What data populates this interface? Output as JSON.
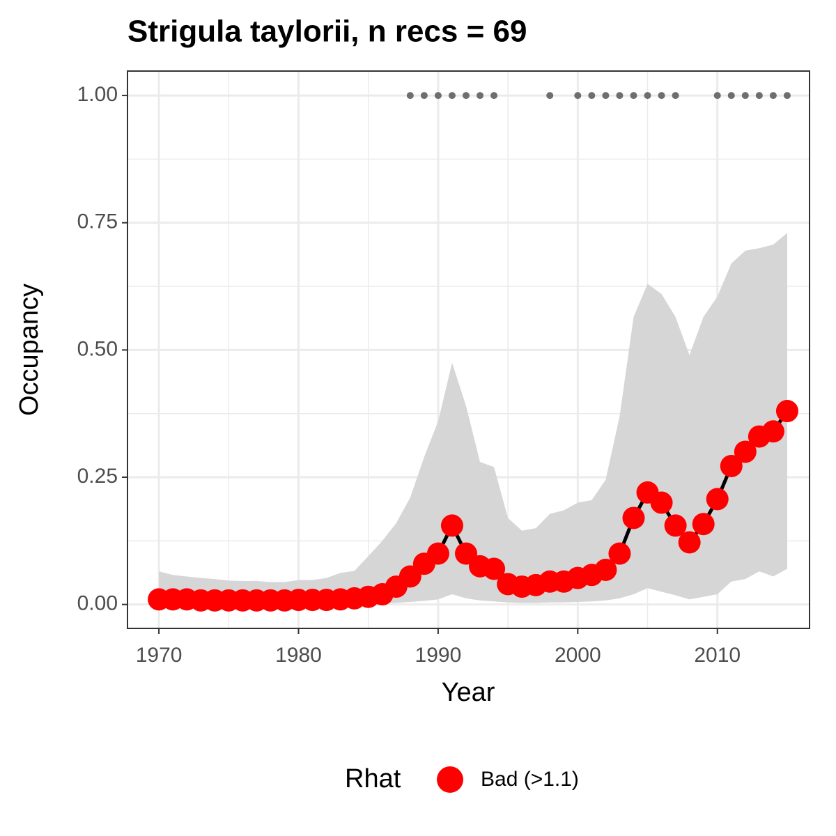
{
  "chart_data": {
    "type": "line",
    "title": "Strigula taylorii, n recs = 69",
    "x_label": "Year",
    "y_label": "Occupancy",
    "xlim": [
      1967.75,
      2016.6
    ],
    "ylim": [
      -0.047,
      1.048
    ],
    "xticks": [
      1970,
      1980,
      1990,
      2000,
      2010
    ],
    "yticks": [
      {
        "value": 0,
        "label": "0.00"
      },
      {
        "value": 0.25,
        "label": "0.25"
      },
      {
        "value": 0.5,
        "label": "0.50"
      },
      {
        "value": 0.75,
        "label": "0.75"
      },
      {
        "value": 1,
        "label": "1.00"
      }
    ],
    "grid": true,
    "x": [
      1970,
      1971,
      1972,
      1973,
      1974,
      1975,
      1976,
      1977,
      1978,
      1979,
      1980,
      1981,
      1982,
      1983,
      1984,
      1985,
      1986,
      1987,
      1988,
      1989,
      1990,
      1991,
      1992,
      1993,
      1994,
      1995,
      1996,
      1997,
      1998,
      1999,
      2000,
      2001,
      2002,
      2003,
      2004,
      2005,
      2006,
      2007,
      2008,
      2009,
      2010,
      2011,
      2012,
      2013,
      2014,
      2015
    ],
    "band": {
      "color": "#d6d6d6",
      "lower": [
        0,
        0,
        0,
        0,
        0,
        0,
        0,
        0,
        0,
        0,
        0,
        0,
        0,
        0,
        0,
        0.001,
        0.002,
        0.003,
        0.005,
        0.007,
        0.01,
        0.02,
        0.012,
        0.008,
        0.006,
        0.004,
        0.003,
        0.003,
        0.004,
        0.004,
        0.005,
        0.006,
        0.008,
        0.012,
        0.02,
        0.032,
        0.025,
        0.018,
        0.01,
        0.015,
        0.02,
        0.045,
        0.05,
        0.065,
        0.055,
        0.07
      ],
      "upper": [
        0.065,
        0.058,
        0.055,
        0.052,
        0.05,
        0.047,
        0.046,
        0.046,
        0.044,
        0.044,
        0.048,
        0.048,
        0.052,
        0.062,
        0.066,
        0.095,
        0.125,
        0.16,
        0.21,
        0.29,
        0.36,
        0.475,
        0.39,
        0.28,
        0.27,
        0.17,
        0.145,
        0.15,
        0.178,
        0.185,
        0.2,
        0.205,
        0.245,
        0.37,
        0.565,
        0.63,
        0.61,
        0.565,
        0.49,
        0.565,
        0.605,
        0.67,
        0.695,
        0.7,
        0.707,
        0.73
      ]
    },
    "series": [
      {
        "name": "Bad (>1.1)",
        "color": "#ff0000",
        "line_color": "#000000",
        "values": [
          0.01,
          0.01,
          0.01,
          0.008,
          0.008,
          0.008,
          0.008,
          0.008,
          0.008,
          0.008,
          0.009,
          0.009,
          0.009,
          0.01,
          0.012,
          0.015,
          0.02,
          0.035,
          0.055,
          0.08,
          0.1,
          0.155,
          0.1,
          0.075,
          0.07,
          0.04,
          0.035,
          0.038,
          0.045,
          0.045,
          0.052,
          0.058,
          0.068,
          0.1,
          0.17,
          0.22,
          0.2,
          0.155,
          0.122,
          0.158,
          0.207,
          0.272,
          0.3,
          0.33,
          0.34,
          0.38
        ]
      }
    ],
    "records": {
      "color": "#6e6e6e",
      "y": 1,
      "x": [
        1988,
        1989,
        1990,
        1991,
        1992,
        1993,
        1994,
        1998,
        2000,
        2001,
        2002,
        2003,
        2004,
        2005,
        2006,
        2007,
        2010,
        2011,
        2012,
        2013,
        2014,
        2015
      ]
    },
    "legend_title": "Rhat",
    "legend": "bottom"
  }
}
